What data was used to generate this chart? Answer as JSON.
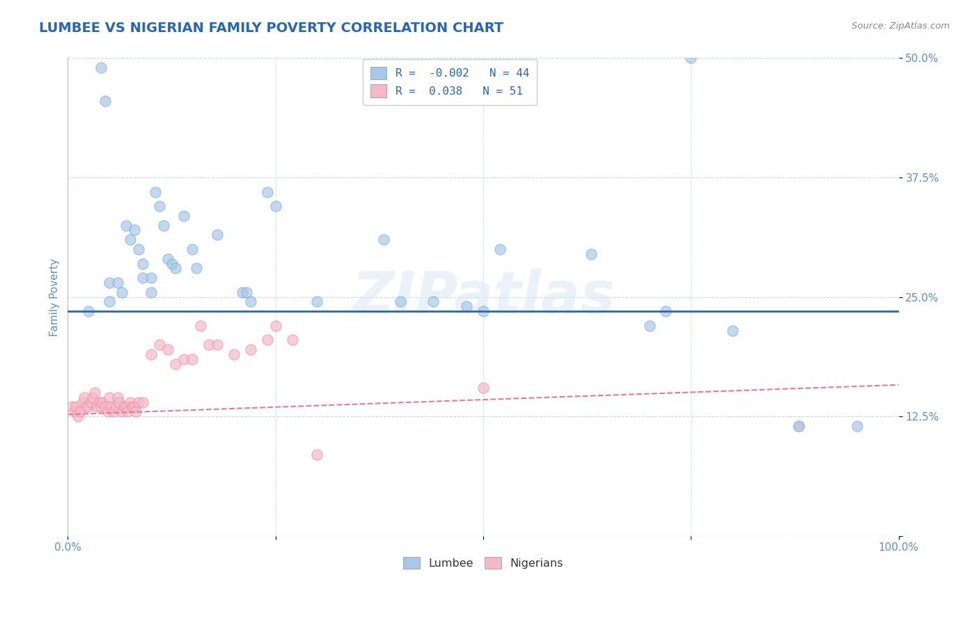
{
  "title": "LUMBEE VS NIGERIAN FAMILY POVERTY CORRELATION CHART",
  "source": "Source: ZipAtlas.com",
  "ylabel": "Family Poverty",
  "xlim": [
    0,
    1.0
  ],
  "ylim": [
    0,
    0.5
  ],
  "xticks": [
    0.0,
    0.25,
    0.5,
    0.75,
    1.0
  ],
  "xticklabels": [
    "0.0%",
    "",
    "",
    "",
    "100.0%"
  ],
  "yticks": [
    0.0,
    0.125,
    0.25,
    0.375,
    0.5
  ],
  "yticklabels": [
    "",
    "12.5%",
    "25.0%",
    "37.5%",
    "50.0%"
  ],
  "title_color": "#2966b8",
  "axis_color": "#5a8fd0",
  "source_color": "#888888",
  "watermark": "ZIPatlas",
  "lumbee_R": -0.002,
  "lumbee_N": 44,
  "nigerian_R": 0.038,
  "nigerian_N": 51,
  "lumbee_color": "#a8c8e8",
  "lumbee_edge_color": "#7aaed4",
  "nigerian_color": "#f5b8c8",
  "nigerian_edge_color": "#e890a8",
  "lumbee_line_color": "#2966b8",
  "nigerian_line_color": "#e87890",
  "grid_color": "#c8d8e8",
  "lumbee_x": [
    0.025,
    0.04,
    0.045,
    0.05,
    0.05,
    0.06,
    0.065,
    0.07,
    0.075,
    0.08,
    0.085,
    0.09,
    0.09,
    0.1,
    0.1,
    0.105,
    0.11,
    0.115,
    0.12,
    0.125,
    0.13,
    0.14,
    0.15,
    0.155,
    0.18,
    0.21,
    0.215,
    0.22,
    0.24,
    0.25,
    0.3,
    0.38,
    0.4,
    0.44,
    0.48,
    0.5,
    0.52,
    0.63,
    0.7,
    0.72,
    0.75,
    0.8,
    0.88,
    0.95
  ],
  "lumbee_y": [
    0.235,
    0.49,
    0.455,
    0.265,
    0.245,
    0.265,
    0.255,
    0.325,
    0.31,
    0.32,
    0.3,
    0.285,
    0.27,
    0.27,
    0.255,
    0.36,
    0.345,
    0.325,
    0.29,
    0.285,
    0.28,
    0.335,
    0.3,
    0.28,
    0.315,
    0.255,
    0.255,
    0.245,
    0.36,
    0.345,
    0.245,
    0.31,
    0.245,
    0.245,
    0.24,
    0.235,
    0.3,
    0.295,
    0.22,
    0.235,
    0.5,
    0.215,
    0.115,
    0.115
  ],
  "nigerian_x": [
    0.005,
    0.008,
    0.01,
    0.012,
    0.015,
    0.018,
    0.02,
    0.022,
    0.025,
    0.028,
    0.03,
    0.032,
    0.035,
    0.038,
    0.04,
    0.042,
    0.045,
    0.048,
    0.05,
    0.052,
    0.055,
    0.058,
    0.06,
    0.062,
    0.065,
    0.068,
    0.07,
    0.072,
    0.075,
    0.078,
    0.08,
    0.082,
    0.085,
    0.09,
    0.1,
    0.11,
    0.12,
    0.13,
    0.14,
    0.15,
    0.16,
    0.17,
    0.18,
    0.2,
    0.22,
    0.24,
    0.25,
    0.27,
    0.3,
    0.5,
    0.88
  ],
  "nigerian_y": [
    0.135,
    0.13,
    0.135,
    0.125,
    0.13,
    0.14,
    0.145,
    0.135,
    0.135,
    0.14,
    0.145,
    0.15,
    0.135,
    0.14,
    0.135,
    0.14,
    0.135,
    0.13,
    0.145,
    0.135,
    0.13,
    0.135,
    0.145,
    0.14,
    0.13,
    0.135,
    0.135,
    0.13,
    0.14,
    0.135,
    0.135,
    0.13,
    0.14,
    0.14,
    0.19,
    0.2,
    0.195,
    0.18,
    0.185,
    0.185,
    0.22,
    0.2,
    0.2,
    0.19,
    0.195,
    0.205,
    0.22,
    0.205,
    0.085,
    0.155,
    0.115
  ],
  "nigerian_line_y0": 0.127,
  "nigerian_line_y1": 0.158,
  "lumbee_line_y": 0.235
}
